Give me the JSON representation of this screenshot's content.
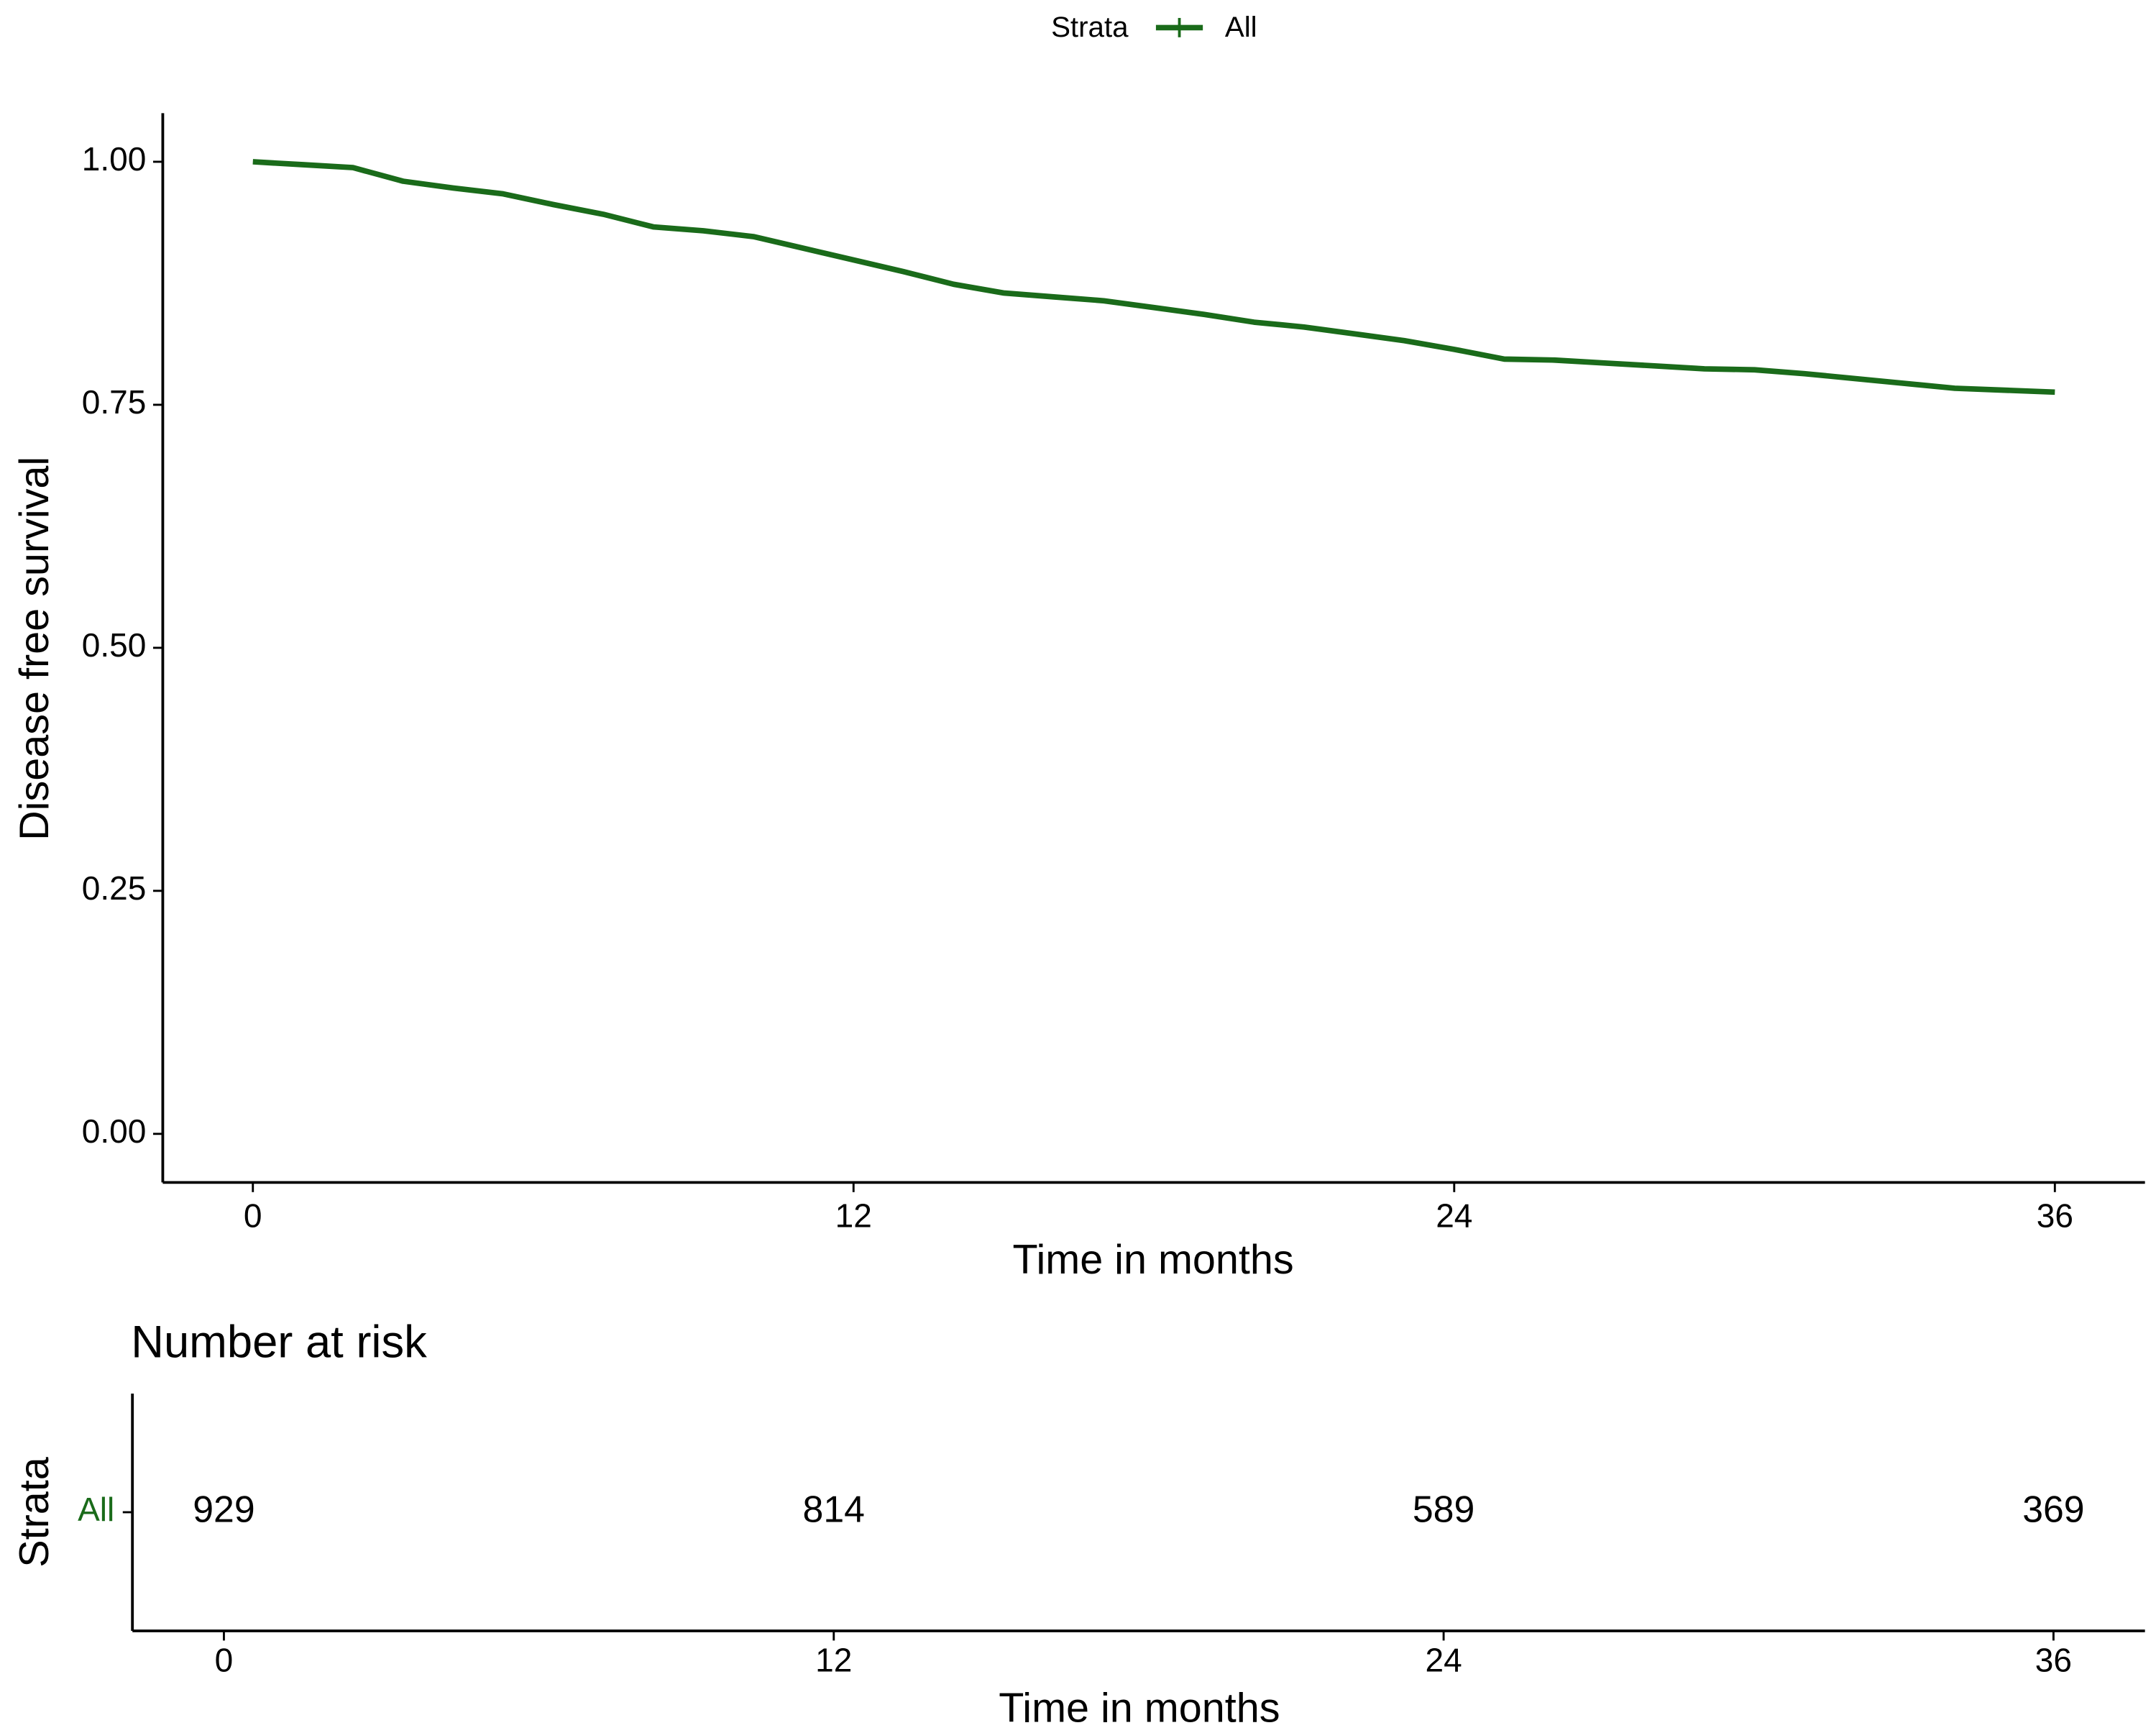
{
  "chart_data": [
    {
      "type": "line",
      "xlabel": "Time in months",
      "ylabel": "Disease free survival",
      "legend_title": "Strata",
      "legend": "top",
      "x": [
        0,
        1,
        2,
        3,
        4,
        5,
        6,
        7,
        8,
        9,
        10,
        11,
        12,
        13,
        14,
        15,
        16,
        17,
        18,
        19,
        20,
        21,
        22,
        23,
        24,
        25,
        26,
        27,
        28,
        29,
        30,
        31,
        32,
        33,
        34,
        35,
        36
      ],
      "series": [
        {
          "name": "All",
          "color": "#1a6b1a",
          "values": [
            1.0,
            0.997,
            0.994,
            0.98,
            0.973,
            0.967,
            0.956,
            0.946,
            0.933,
            0.929,
            0.923,
            0.911,
            0.899,
            0.887,
            0.874,
            0.865,
            0.861,
            0.857,
            0.85,
            0.843,
            0.835,
            0.83,
            0.823,
            0.816,
            0.807,
            0.797,
            0.796,
            0.793,
            0.79,
            0.787,
            0.786,
            0.782,
            0.777,
            0.772,
            0.767,
            0.765,
            0.763
          ]
        }
      ],
      "xlim": [
        -1.8,
        37.8
      ],
      "xticks": [
        0,
        12,
        24,
        36
      ],
      "ylim": [
        -0.05,
        1.05
      ],
      "yticks": [
        {
          "value": 0,
          "label": "0.00"
        },
        0.25,
        {
          "value": 0.5,
          "label": "0.50"
        },
        0.75,
        {
          "value": 1,
          "label": "1.00"
        }
      ]
    },
    {
      "type": "risk_table",
      "title": "Number at risk",
      "xlabel": "Time in months",
      "ylabel": "Strata",
      "categories": [
        "All"
      ],
      "color": "#1a6b1a",
      "x": [
        0,
        12,
        24,
        36
      ],
      "values": [
        929,
        814,
        589,
        369
      ],
      "xlim": [
        -1.8,
        37.8
      ],
      "xticks": [
        0,
        12,
        24,
        36
      ]
    }
  ]
}
